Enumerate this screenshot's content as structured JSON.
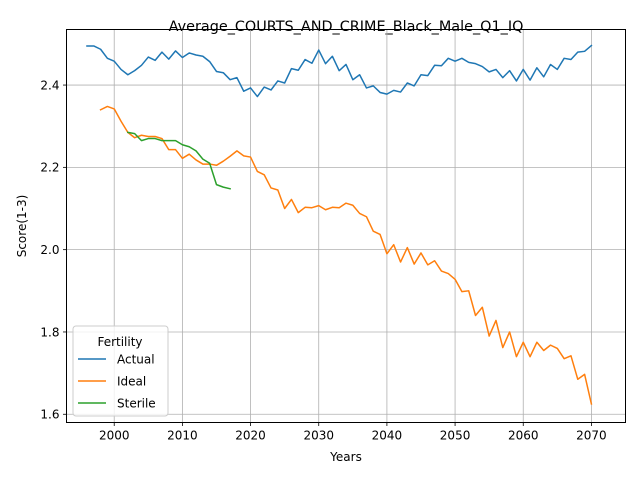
{
  "chart_data": {
    "type": "line",
    "title": "Average_COURTS_AND_CRIME_Black_Male_Q1_IQ",
    "xlabel": "Years",
    "ylabel": "Score(1-3)",
    "xlim": [
      1993,
      2075
    ],
    "ylim": [
      1.58,
      2.535
    ],
    "x_ticks": [
      2000,
      2010,
      2020,
      2030,
      2040,
      2050,
      2060,
      2070
    ],
    "y_ticks": [
      1.6,
      1.8,
      2.0,
      2.2,
      2.4
    ],
    "grid": true,
    "legend": {
      "title": "Fertility",
      "placement": "lower-left"
    },
    "series": [
      {
        "name": "Actual",
        "color": "#1f77b4",
        "x": [
          1996,
          1997,
          1998,
          1999,
          2000,
          2001,
          2002,
          2003,
          2004,
          2005,
          2006,
          2007,
          2008,
          2009,
          2010,
          2011,
          2012,
          2013,
          2014,
          2015,
          2016,
          2017,
          2018,
          2019,
          2020,
          2021,
          2022,
          2023,
          2024,
          2025,
          2026,
          2027,
          2028,
          2029,
          2030,
          2031,
          2032,
          2033,
          2034,
          2035,
          2036,
          2037,
          2038,
          2039,
          2040,
          2041,
          2042,
          2043,
          2044,
          2045,
          2046,
          2047,
          2048,
          2049,
          2050,
          2051,
          2052,
          2053,
          2054,
          2055,
          2056,
          2057,
          2058,
          2059,
          2060,
          2061,
          2062,
          2063,
          2064,
          2065,
          2066,
          2067,
          2068,
          2069,
          2070
        ],
        "values": [
          2.495,
          2.495,
          2.487,
          2.465,
          2.458,
          2.438,
          2.425,
          2.435,
          2.448,
          2.468,
          2.46,
          2.48,
          2.463,
          2.483,
          2.467,
          2.478,
          2.473,
          2.47,
          2.457,
          2.433,
          2.43,
          2.413,
          2.418,
          2.385,
          2.393,
          2.372,
          2.395,
          2.388,
          2.41,
          2.405,
          2.44,
          2.436,
          2.462,
          2.453,
          2.485,
          2.452,
          2.47,
          2.435,
          2.45,
          2.413,
          2.425,
          2.393,
          2.398,
          2.382,
          2.378,
          2.387,
          2.383,
          2.405,
          2.398,
          2.425,
          2.423,
          2.448,
          2.447,
          2.465,
          2.458,
          2.465,
          2.455,
          2.452,
          2.445,
          2.432,
          2.438,
          2.418,
          2.435,
          2.41,
          2.438,
          2.412,
          2.442,
          2.42,
          2.45,
          2.438,
          2.465,
          2.462,
          2.48,
          2.482,
          2.496
        ]
      },
      {
        "name": "Ideal",
        "color": "#ff7f0e",
        "x": [
          1998,
          1999,
          2000,
          2001,
          2002,
          2003,
          2004,
          2005,
          2006,
          2007,
          2008,
          2009,
          2010,
          2011,
          2012,
          2013,
          2014,
          2015,
          2016,
          2017,
          2018,
          2019,
          2020,
          2021,
          2022,
          2023,
          2024,
          2025,
          2026,
          2027,
          2028,
          2029,
          2030,
          2031,
          2032,
          2033,
          2034,
          2035,
          2036,
          2037,
          2038,
          2039,
          2040,
          2041,
          2042,
          2043,
          2044,
          2045,
          2046,
          2047,
          2048,
          2049,
          2050,
          2051,
          2052,
          2053,
          2054,
          2055,
          2056,
          2057,
          2058,
          2059,
          2060,
          2061,
          2062,
          2063,
          2064,
          2065,
          2066,
          2067,
          2068,
          2069,
          2070
        ],
        "values": [
          2.34,
          2.348,
          2.342,
          2.312,
          2.285,
          2.272,
          2.278,
          2.275,
          2.275,
          2.27,
          2.243,
          2.243,
          2.222,
          2.232,
          2.218,
          2.208,
          2.208,
          2.205,
          2.215,
          2.227,
          2.24,
          2.228,
          2.225,
          2.19,
          2.182,
          2.15,
          2.145,
          2.1,
          2.122,
          2.09,
          2.103,
          2.102,
          2.107,
          2.097,
          2.103,
          2.102,
          2.113,
          2.108,
          2.088,
          2.08,
          2.045,
          2.037,
          1.99,
          2.012,
          1.97,
          2.005,
          1.965,
          1.992,
          1.963,
          1.973,
          1.948,
          1.942,
          1.928,
          1.898,
          1.9,
          1.84,
          1.86,
          1.79,
          1.828,
          1.762,
          1.8,
          1.74,
          1.775,
          1.74,
          1.775,
          1.755,
          1.768,
          1.76,
          1.735,
          1.742,
          1.685,
          1.697,
          1.625
        ]
      },
      {
        "name": "Sterile",
        "color": "#2ca02c",
        "x": [
          2002,
          2003,
          2004,
          2005,
          2006,
          2007,
          2008,
          2009,
          2010,
          2011,
          2012,
          2013,
          2014,
          2015,
          2016,
          2017
        ],
        "values": [
          2.285,
          2.282,
          2.265,
          2.27,
          2.27,
          2.265,
          2.265,
          2.265,
          2.255,
          2.25,
          2.24,
          2.22,
          2.21,
          2.158,
          2.152,
          2.148
        ]
      }
    ]
  }
}
